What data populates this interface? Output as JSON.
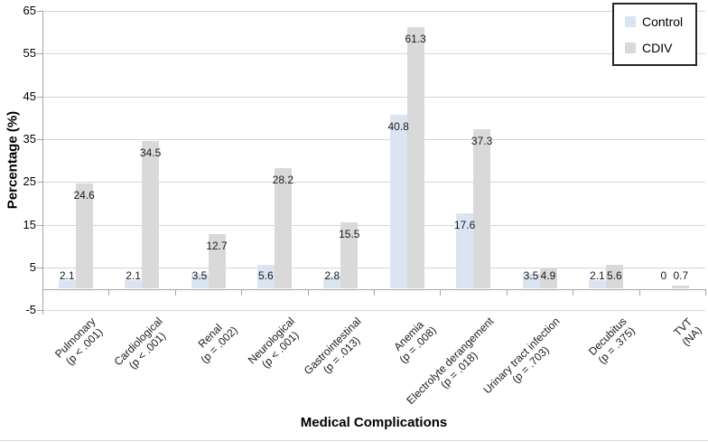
{
  "chart_data": {
    "type": "bar",
    "title": "",
    "xlabel": "Medical Complications",
    "ylabel": "Percentage (%)",
    "ylim": [
      -5,
      65
    ],
    "yticks": [
      65,
      55,
      45,
      35,
      25,
      15,
      5,
      -5
    ],
    "grid": true,
    "legend_position": "top-right",
    "categories": [
      {
        "name": "Pulmonary",
        "p": "(p < .001)"
      },
      {
        "name": "Cardiological",
        "p": "(p < .001)"
      },
      {
        "name": "Renal",
        "p": "(p = .002)"
      },
      {
        "name": "Neurological",
        "p": "(p < .001)"
      },
      {
        "name": "Gastrointestinal",
        "p": "(p = .013)"
      },
      {
        "name": "Anemia",
        "p": "(p = .008)"
      },
      {
        "name": "Electrolyte derangement",
        "p": "(p = .018)"
      },
      {
        "name": "Urinary tract infection",
        "p": "(p = .703)"
      },
      {
        "name": "Decubitus",
        "p": "(p = .375)"
      },
      {
        "name": "TVT",
        "p": "(NA)"
      }
    ],
    "series": [
      {
        "name": "Control",
        "color": "#dbe5f2",
        "values": [
          2.1,
          2.1,
          3.5,
          5.6,
          2.8,
          40.8,
          17.6,
          3.5,
          2.1,
          0
        ]
      },
      {
        "name": "CDIV",
        "color": "#d9d9d9",
        "values": [
          24.6,
          34.5,
          12.7,
          28.2,
          15.5,
          61.3,
          37.3,
          4.9,
          5.6,
          0.7
        ]
      }
    ]
  }
}
